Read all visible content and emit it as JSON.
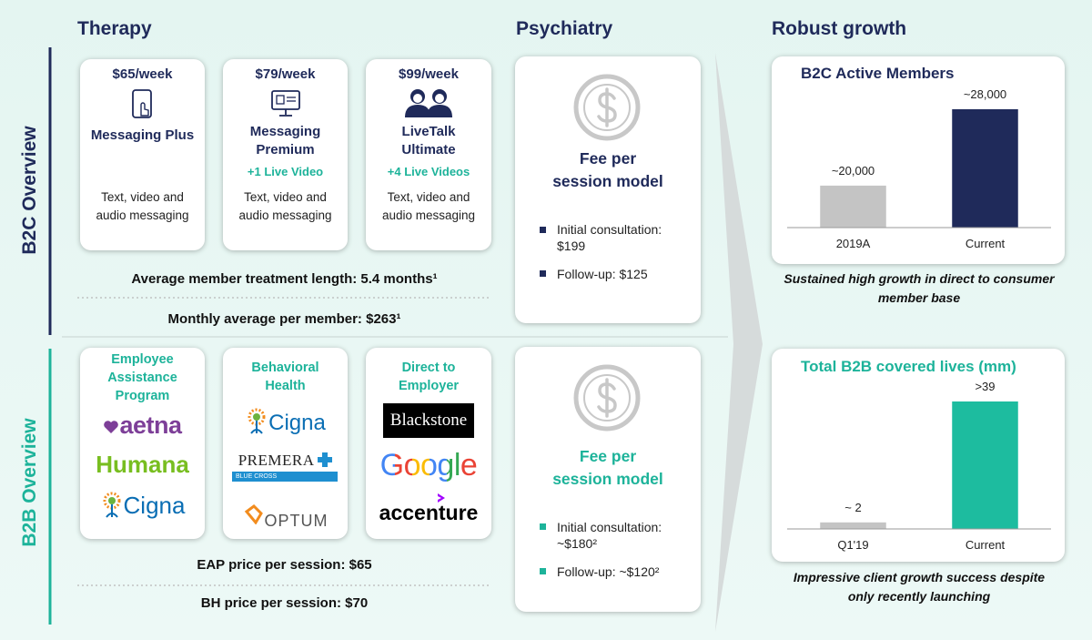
{
  "headers": {
    "therapy": "Therapy",
    "psychiatry": "Psychiatry",
    "growth": "Robust growth"
  },
  "b2c": {
    "label": "B2C Overview",
    "plans": [
      {
        "price": "$65/week",
        "name": "Messaging Plus",
        "description": "Text, video and audio messaging"
      },
      {
        "price": "$79/week",
        "name": "Messaging Premium",
        "extra": "+1 Live Video",
        "description": "Text, video and audio messaging"
      },
      {
        "price": "$99/week",
        "name": "LiveTalk Ultimate",
        "extra": "+4 Live Videos",
        "description": "Text, video and audio messaging"
      }
    ],
    "stats": [
      "Average member treatment length: 5.4 months¹",
      "Monthly average per member: $263¹"
    ],
    "psychiatry": {
      "title": "Fee per session model",
      "items": [
        "Initial consultation: $199",
        "Follow-up: $125"
      ]
    }
  },
  "b2b": {
    "label": "B2B Overview",
    "segments": [
      {
        "title": "Employee Assistance Program",
        "logos": [
          "aetna",
          "Humana",
          "Cigna"
        ]
      },
      {
        "title": "Behavioral Health",
        "logos": [
          "Cigna",
          "PREMERA",
          "BLUE CROSS",
          "OPTUM"
        ]
      },
      {
        "title": "Direct to Employer",
        "logos": [
          "Blackstone",
          "Google",
          "accenture"
        ]
      }
    ],
    "stats": [
      "EAP price per session: $65",
      "BH price per session: $70"
    ],
    "psychiatry": {
      "title": "Fee per session model",
      "items": [
        "Initial consultation: ~$180²",
        "Follow-up: ~$120²"
      ]
    }
  },
  "chart_data": [
    {
      "type": "bar",
      "title": "B2C Active Members",
      "categories": [
        "2019A",
        "Current"
      ],
      "values": [
        20000,
        28000
      ],
      "value_labels": [
        "~20,000",
        "~28,000"
      ],
      "colors": [
        "#c4c4c4",
        "#1f2a5a"
      ],
      "ylim": [
        15600,
        28000
      ],
      "annotation": "Sustained high growth in direct to consumer member base"
    },
    {
      "type": "bar",
      "title": "Total B2B covered lives (mm)",
      "categories": [
        "Q1'19",
        "Current"
      ],
      "values": [
        2,
        39
      ],
      "value_labels": [
        "~ 2",
        ">39"
      ],
      "colors": [
        "#c4c4c4",
        "#1dbc9f"
      ],
      "ylim": [
        0,
        39
      ],
      "annotation": "Impressive client growth success despite only recently launching"
    }
  ]
}
